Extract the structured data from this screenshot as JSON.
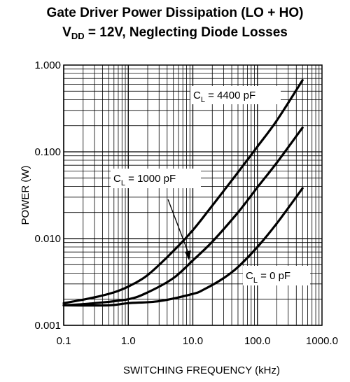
{
  "chart_data": {
    "type": "line",
    "title": "Gate Driver Power Dissipation (LO + HO)",
    "subtitle": {
      "prefix": "V",
      "sub": "DD",
      "rest": " = 12V, Neglecting Diode Losses"
    },
    "xlabel": "SWITCHING FREQUENCY (kHz)",
    "ylabel": "POWER (W)",
    "xscale": "log",
    "yscale": "log",
    "xlim": [
      0.1,
      1000
    ],
    "ylim": [
      0.001,
      1
    ],
    "grid": true,
    "xticks": [
      "0.1",
      "1.0",
      "10.0",
      "100.0",
      "1000.0"
    ],
    "yticks": [
      "0.001",
      "0.010",
      "0.100",
      "1.000"
    ],
    "series": [
      {
        "label": {
          "prefix": "C",
          "sub": "L",
          "rest": " = 4400 pF"
        },
        "x": [
          0.1,
          0.3,
          0.6,
          1.0,
          2.0,
          5.0,
          10.0,
          20.0,
          50.0,
          100.0,
          200.0,
          500.0
        ],
        "y": [
          0.0018,
          0.0021,
          0.0024,
          0.0028,
          0.0038,
          0.0072,
          0.0125,
          0.024,
          0.058,
          0.115,
          0.23,
          0.67
        ]
      },
      {
        "label": {
          "prefix": "C",
          "sub": "L",
          "rest": " = 1000 pF"
        },
        "x": [
          0.1,
          0.3,
          1.0,
          2.0,
          5.0,
          10.0,
          20.0,
          50.0,
          100.0,
          200.0,
          500.0
        ],
        "y": [
          0.0017,
          0.0018,
          0.002,
          0.0024,
          0.0035,
          0.0056,
          0.0092,
          0.02,
          0.039,
          0.075,
          0.19
        ]
      },
      {
        "label": {
          "prefix": "C",
          "sub": "L",
          "rest": " = 0 pF"
        },
        "x": [
          0.1,
          0.5,
          1.0,
          3.0,
          10.0,
          15.0,
          30.0,
          50.0,
          100.0,
          200.0,
          500.0
        ],
        "y": [
          0.0017,
          0.0017,
          0.0018,
          0.0019,
          0.0023,
          0.0026,
          0.0035,
          0.0047,
          0.008,
          0.015,
          0.038
        ]
      }
    ]
  }
}
